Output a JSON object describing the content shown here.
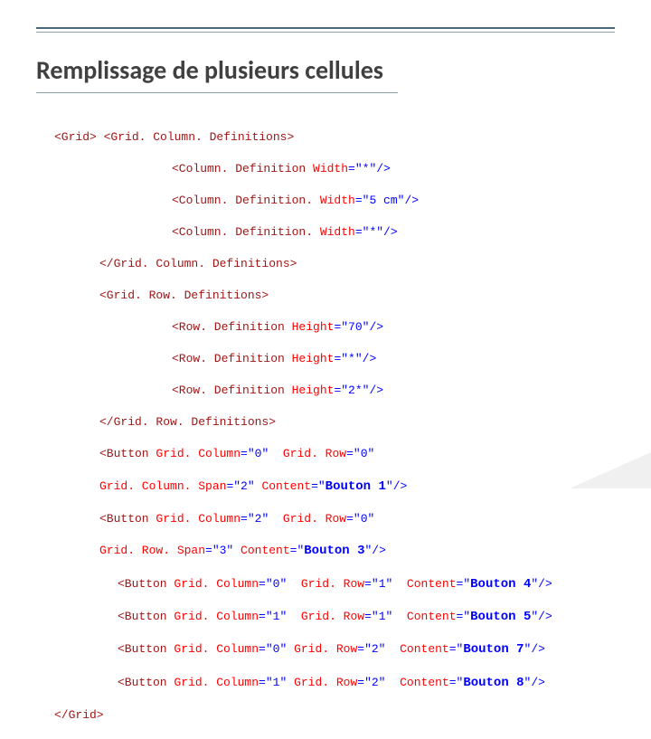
{
  "title": "Remplissage de plusieurs cellules",
  "colors": {
    "tag": "#a31515",
    "attr_blue": "#0000ff",
    "attr_red": "#ff0000",
    "text": "#404040",
    "line_dark": "#4a6a7a",
    "line_light": "#8aa0ab",
    "bg": "#ffffff"
  },
  "code": {
    "l1_a": "<Grid>",
    "l1_b": " <Grid. Column. Definitions>",
    "l2_a": "<Column. Definition ",
    "l2_b": "Width",
    "l2_c": "=\"*\"/>",
    "l3_a": "<Column. Definition. ",
    "l3_b": "Width",
    "l3_c": "=\"5 cm\"/>",
    "l4_a": "<Column. Definition. ",
    "l4_b": "Width",
    "l4_c": "=\"*\"/>",
    "l5": "</Grid. Column. Definitions>",
    "l6": "<Grid. Row. Definitions>",
    "l7_a": "<Row. Definition ",
    "l7_b": "Height",
    "l7_c": "=\"70\"/>",
    "l8_a": "<Row. Definition ",
    "l8_b": "Height",
    "l8_c": "=\"*\"/>",
    "l9_a": "<Row. Definition ",
    "l9_b": "Height",
    "l9_c": "=\"2*\"/>",
    "l10": "</Grid. Row. Definitions>",
    "l11_a": "<Button ",
    "l11_b": "Grid. Column",
    "l11_c": "=\"0\" ",
    "l11_d": "Grid. Row",
    "l11_e": "=\"0\" ",
    "l12_a": "Grid. Column. Span",
    "l12_b": "=\"2\" ",
    "l12_c": "Content",
    "l12_d": "=\"",
    "l12_e": "Bouton 1",
    "l12_f": "\"/>",
    "l13_a": "<Button ",
    "l13_b": "Grid. Column",
    "l13_c": "=\"2\" ",
    "l13_d": "Grid. Row",
    "l13_e": "=\"0\" ",
    "l14_a": "Grid. Row. Span",
    "l14_b": "=\"3\" ",
    "l14_c": "Content",
    "l14_d": "=\"",
    "l14_e": "Bouton 3",
    "l14_f": "\"/>",
    "l15_a": "<Button ",
    "l15_b": "Grid. Column",
    "l15_c": "=\"0\" ",
    "l15_d": "Grid. Row",
    "l15_e": "=\"1\" ",
    "l15_f": "Content",
    "l15_g": "=\"",
    "l15_h": "Bouton 4",
    "l15_i": "\"/>",
    "l16_a": "<Button ",
    "l16_b": "Grid. Column",
    "l16_c": "=\"1\" ",
    "l16_d": "Grid. Row",
    "l16_e": "=\"1\" ",
    "l16_f": "Content",
    "l16_g": "=\"",
    "l16_h": "Bouton 5",
    "l16_i": "\"/>",
    "l17_a": "<Button ",
    "l17_b": "Grid. Column",
    "l17_c": "=\"0\" ",
    "l17_d": "Grid. Row",
    "l17_e": "=\"2\" ",
    "l17_f": "Content",
    "l17_g": "=\"",
    "l17_h": "Bouton 7",
    "l17_i": "\"/>",
    "l18_a": "<Button ",
    "l18_b": "Grid. Column",
    "l18_c": "=\"1\" ",
    "l18_d": "Grid. Row",
    "l18_e": "=\"2\" ",
    "l18_f": "Content",
    "l18_g": "=\"",
    "l18_h": "Bouton 8",
    "l18_i": "\"/>",
    "l19": "</Grid>"
  }
}
